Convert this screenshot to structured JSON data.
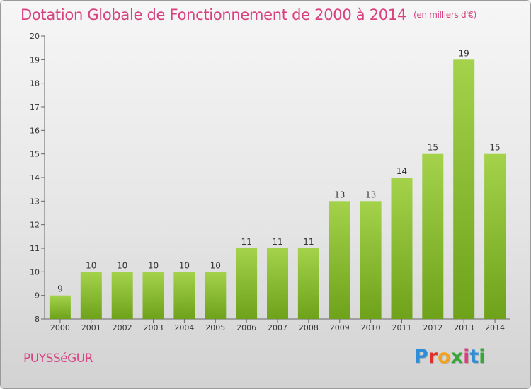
{
  "header": {
    "title": "Dotation Globale de Fonctionnement de 2000 à 2014",
    "unit": "(en milliers d'€)"
  },
  "footer": {
    "commune": "PUYSSéGUR",
    "logo_letters": [
      "P",
      "r",
      "o",
      "x",
      "i",
      "t",
      "i"
    ],
    "logo_colors": [
      "#2e8fd6",
      "#e2312b",
      "#f2a31b",
      "#3aa639",
      "#d7417f",
      "#2e8fd6",
      "#3aa639"
    ]
  },
  "colors": {
    "bar_light": "#a4d24b",
    "bar_dark": "#6ea21a",
    "title": "#d7417f"
  },
  "chart_data": {
    "type": "bar",
    "categories": [
      "2000",
      "2001",
      "2002",
      "2003",
      "2004",
      "2005",
      "2006",
      "2007",
      "2008",
      "2009",
      "2010",
      "2011",
      "2012",
      "2013",
      "2014"
    ],
    "values": [
      9,
      10,
      10,
      10,
      10,
      10,
      11,
      11,
      11,
      13,
      13,
      14,
      15,
      19,
      15
    ],
    "ylim": [
      8,
      20
    ],
    "yticks": [
      8,
      9,
      10,
      11,
      12,
      13,
      14,
      15,
      16,
      17,
      18,
      19,
      20
    ],
    "grid": false,
    "xlabel": "",
    "ylabel": ""
  }
}
